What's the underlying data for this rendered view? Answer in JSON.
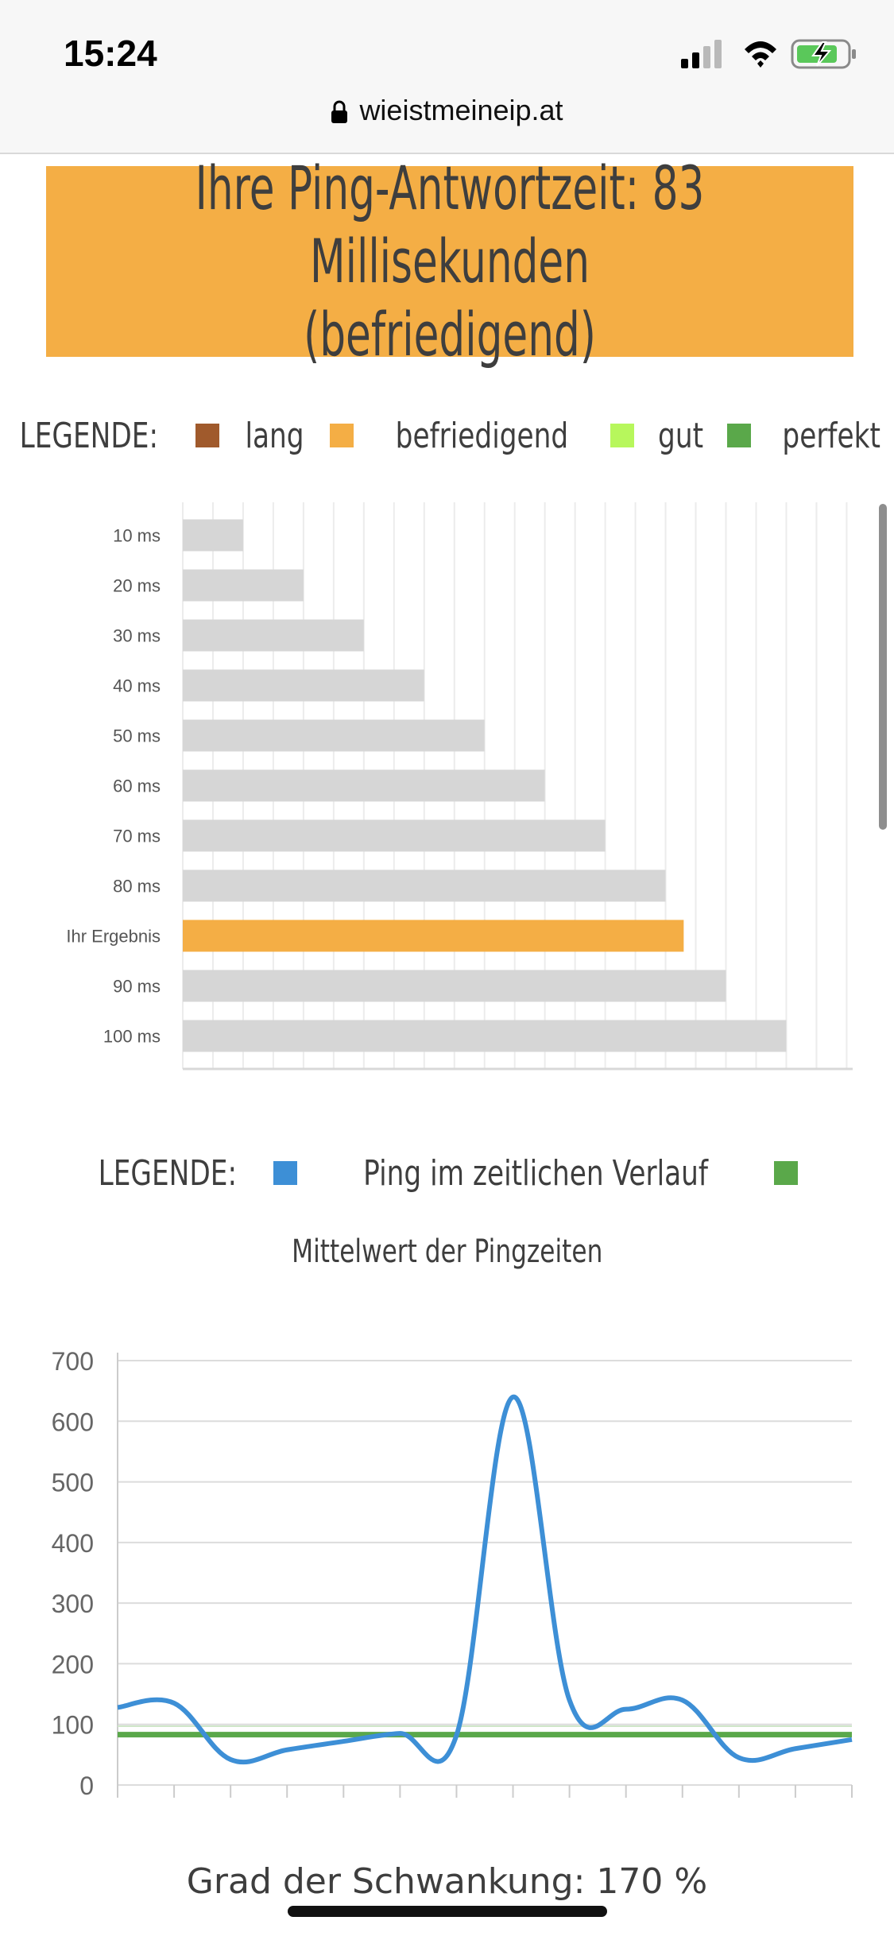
{
  "status_bar": {
    "time": "15:24",
    "icons": [
      "signal-icon",
      "wifi-icon",
      "battery-charging-icon"
    ]
  },
  "browser": {
    "url": "wieistmeineip.at"
  },
  "banner": {
    "title": "Ihre Ping-Antwortzeit: 83 Millisekunden (befriedigend)",
    "color": "#f4ae45"
  },
  "legend1": {
    "label": "LEGENDE:",
    "items": [
      {
        "label": "lang",
        "color": "#a05a2c"
      },
      {
        "label": "befriedigend",
        "color": "#f4ae45"
      },
      {
        "label": "gut",
        "color": "#b7f75c"
      },
      {
        "label": "perfekt",
        "color": "#5aa84a"
      }
    ]
  },
  "chart_data": [
    {
      "type": "bar",
      "orientation": "horizontal",
      "categories": [
        "10 ms",
        "20 ms",
        "30 ms",
        "40 ms",
        "50 ms",
        "60 ms",
        "70 ms",
        "80 ms",
        "Ihr Ergebnis",
        "90 ms",
        "100 ms"
      ],
      "values": [
        10,
        20,
        30,
        40,
        50,
        60,
        70,
        80,
        83,
        90,
        100
      ],
      "highlight_index": 8,
      "bar_color": "#d6d6d6",
      "highlight_color": "#f4ae45",
      "xlim": [
        0,
        111
      ],
      "grid": true
    },
    {
      "type": "line",
      "title": "Mittelwert der Pingzeiten",
      "y_ticks": [
        "0",
        "100",
        "200",
        "300",
        "400",
        "500",
        "600",
        "700"
      ],
      "ylim": [
        0,
        700
      ],
      "x": [
        0,
        1,
        2,
        3,
        4,
        5,
        6,
        7,
        8,
        9,
        10,
        11,
        12,
        13
      ],
      "series": [
        {
          "name": "Ping im zeitlichen Verlauf",
          "color": "#3d8fd6",
          "values": [
            128,
            135,
            42,
            58,
            72,
            85,
            82,
            640,
            140,
            125,
            140,
            45,
            60,
            75
          ]
        },
        {
          "color": "#5aa84a",
          "values": [
            83,
            83,
            83,
            83,
            83,
            83,
            83,
            83,
            83,
            83,
            83,
            83,
            83,
            83
          ]
        }
      ],
      "grid": true
    }
  ],
  "legend2": {
    "label": "LEGENDE:",
    "items": [
      {
        "label": "Ping im zeitlichen Verlauf",
        "color": "#3d8fd6"
      },
      {
        "label": "",
        "color": "#5aa84a"
      }
    ]
  },
  "footer": {
    "fluctuation": "Grad der Schwankung: 170 %"
  }
}
